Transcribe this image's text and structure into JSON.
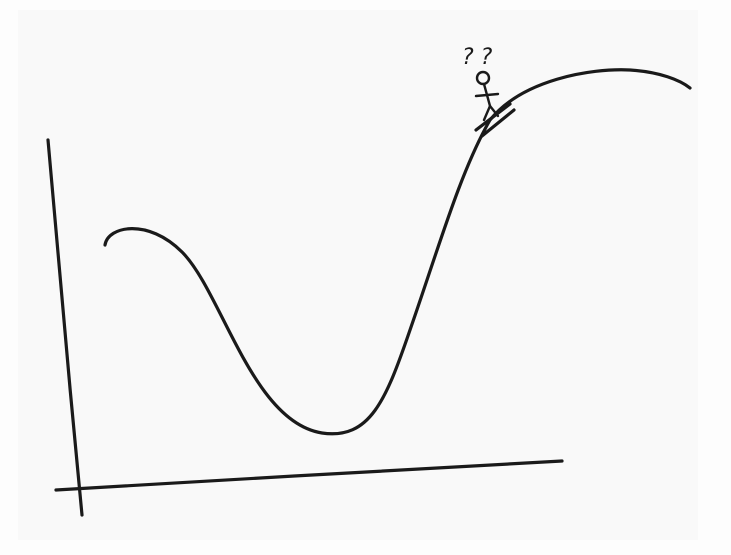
{
  "annotation": "? ?"
}
